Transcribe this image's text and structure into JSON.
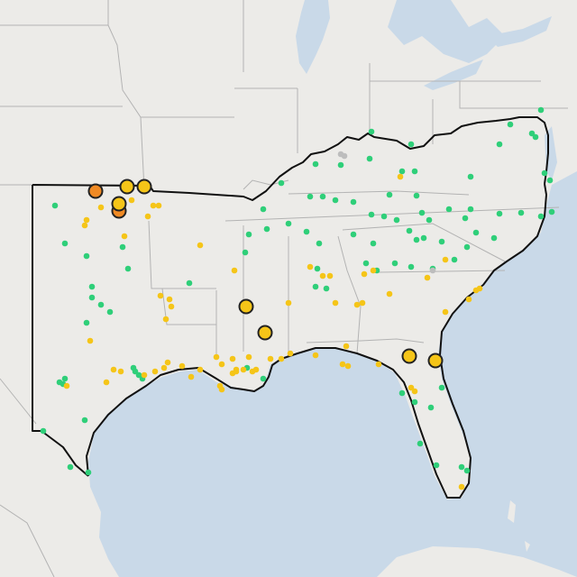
{
  "map": {
    "colors": {
      "water": "#c9d9e8",
      "land": "#ecebe8",
      "state_border": "#b3b3b3",
      "region_outline": "#111111",
      "good": "#2fcf79",
      "moderate": "#f5c518",
      "unhealthy_sensitive": "#f08a24",
      "no_data": "#bdbdbd",
      "marker_stroke": "#222222"
    }
  }
}
